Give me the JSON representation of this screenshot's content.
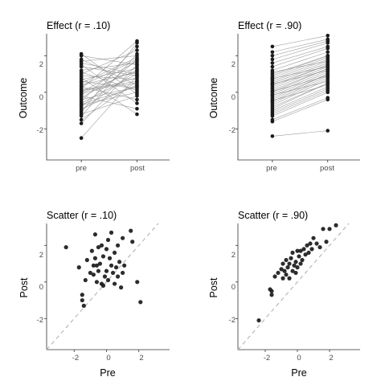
{
  "colors": {
    "points": "#1a1a1a",
    "lines": "#8c8c8c",
    "identity_line": "#b3b3b3",
    "axis": "#333333",
    "tick_text": "#4d4d4d",
    "background": "#ffffff"
  },
  "chart_data": [
    {
      "type": "line",
      "title": "Effect (r = .10)",
      "xlabel": "",
      "ylabel": "Outcome",
      "categories": [
        "pre",
        "post"
      ],
      "ylim": [
        -3.7,
        3.2
      ],
      "yticks": [
        -2,
        0,
        2
      ],
      "grid": false,
      "pairs": [
        [
          -2.5,
          0.9
        ],
        [
          -1.7,
          1.5
        ],
        [
          -1.5,
          0.6
        ],
        [
          -1.3,
          2.1
        ],
        [
          -1.2,
          -0.2
        ],
        [
          -1.0,
          1.2
        ],
        [
          -0.9,
          0.4
        ],
        [
          -0.8,
          1.8
        ],
        [
          -0.7,
          0.0
        ],
        [
          -0.6,
          1.0
        ],
        [
          -0.5,
          2.5
        ],
        [
          -0.4,
          0.3
        ],
        [
          -0.3,
          1.4
        ],
        [
          -0.2,
          -0.9
        ],
        [
          -0.1,
          0.8
        ],
        [
          0.0,
          1.7
        ],
        [
          0.1,
          0.5
        ],
        [
          0.2,
          2.8
        ],
        [
          0.3,
          -0.4
        ],
        [
          0.4,
          1.1
        ],
        [
          0.5,
          1.9
        ],
        [
          0.6,
          0.2
        ],
        [
          0.7,
          1.3
        ],
        [
          0.8,
          -1.2
        ],
        [
          0.9,
          0.7
        ],
        [
          1.0,
          2.3
        ],
        [
          1.1,
          0.1
        ],
        [
          1.2,
          1.6
        ],
        [
          1.4,
          0.9
        ],
        [
          1.5,
          -0.6
        ],
        [
          1.6,
          1.0
        ],
        [
          1.7,
          2.0
        ],
        [
          1.8,
          0.4
        ],
        [
          2.0,
          1.5
        ],
        [
          2.1,
          -0.1
        ],
        [
          -0.05,
          1.2
        ],
        [
          0.15,
          0.6
        ],
        [
          -1.1,
          2.7
        ],
        [
          0.35,
          1.8
        ],
        [
          -0.65,
          0.3
        ]
      ]
    },
    {
      "type": "line",
      "title": "Effect (r = .90)",
      "xlabel": "",
      "ylabel": "Outcome",
      "categories": [
        "pre",
        "post"
      ],
      "ylim": [
        -3.7,
        3.2
      ],
      "yticks": [
        -2,
        0,
        2
      ],
      "grid": false,
      "pairs": [
        [
          -2.4,
          -2.1
        ],
        [
          -1.6,
          -0.4
        ],
        [
          -1.5,
          -0.3
        ],
        [
          -1.3,
          0.0
        ],
        [
          -1.2,
          0.1
        ],
        [
          -1.0,
          0.3
        ],
        [
          -0.9,
          0.5
        ],
        [
          -0.8,
          0.5
        ],
        [
          -0.7,
          0.7
        ],
        [
          -0.6,
          0.8
        ],
        [
          -0.5,
          0.9
        ],
        [
          -0.4,
          1.0
        ],
        [
          -0.3,
          1.0
        ],
        [
          -0.2,
          1.1
        ],
        [
          -0.1,
          1.2
        ],
        [
          0.0,
          1.3
        ],
        [
          0.1,
          1.3
        ],
        [
          0.2,
          1.4
        ],
        [
          0.3,
          1.5
        ],
        [
          0.4,
          1.5
        ],
        [
          0.5,
          1.6
        ],
        [
          0.6,
          1.7
        ],
        [
          0.7,
          1.8
        ],
        [
          0.8,
          1.9
        ],
        [
          0.9,
          2.0
        ],
        [
          1.0,
          2.0
        ],
        [
          1.2,
          2.2
        ],
        [
          1.4,
          2.4
        ],
        [
          1.6,
          2.5
        ],
        [
          1.8,
          2.7
        ],
        [
          2.0,
          2.8
        ],
        [
          2.2,
          2.9
        ],
        [
          2.5,
          3.1
        ],
        [
          -0.15,
          0.6
        ],
        [
          0.05,
          0.9
        ],
        [
          0.45,
          1.2
        ],
        [
          -1.1,
          0.2
        ],
        [
          0.75,
          1.4
        ],
        [
          1.1,
          1.7
        ],
        [
          -0.45,
          0.4
        ]
      ]
    },
    {
      "type": "scatter",
      "title": "Scatter (r = .10)",
      "xlabel": "Pre",
      "ylabel": "Post",
      "xlim": [
        -3.7,
        3.9
      ],
      "ylim": [
        -3.7,
        3.2
      ],
      "xticks": [
        -2,
        0,
        2
      ],
      "yticks": [
        -2,
        0,
        2
      ],
      "identity_line": true,
      "grid": false,
      "points": [
        [
          -2.5,
          1.9
        ],
        [
          -1.7,
          0.8
        ],
        [
          -1.5,
          -0.7
        ],
        [
          -1.5,
          -1.0
        ],
        [
          -1.4,
          -1.3
        ],
        [
          -1.3,
          0.1
        ],
        [
          -1.2,
          1.2
        ],
        [
          -1.0,
          0.5
        ],
        [
          -0.9,
          1.7
        ],
        [
          -0.8,
          0.9
        ],
        [
          -0.8,
          0.4
        ],
        [
          -0.7,
          2.6
        ],
        [
          -0.7,
          1.3
        ],
        [
          -0.6,
          0.9
        ],
        [
          -0.6,
          0.0
        ],
        [
          -0.5,
          1.9
        ],
        [
          -0.5,
          0.6
        ],
        [
          -0.4,
          1.0
        ],
        [
          -0.3,
          2.0
        ],
        [
          -0.3,
          -0.1
        ],
        [
          -0.2,
          1.4
        ],
        [
          -0.2,
          -0.2
        ],
        [
          -0.1,
          0.3
        ],
        [
          0.0,
          1.8
        ],
        [
          0.0,
          0.6
        ],
        [
          0.1,
          2.3
        ],
        [
          0.1,
          0.1
        ],
        [
          0.2,
          1.3
        ],
        [
          0.3,
          2.7
        ],
        [
          0.3,
          0.9
        ],
        [
          0.4,
          0.5
        ],
        [
          0.5,
          1.6
        ],
        [
          0.5,
          -0.1
        ],
        [
          0.6,
          0.8
        ],
        [
          0.7,
          2.0
        ],
        [
          0.7,
          0.3
        ],
        [
          0.8,
          1.1
        ],
        [
          0.9,
          -0.3
        ],
        [
          1.0,
          0.5
        ],
        [
          1.0,
          2.4
        ],
        [
          1.1,
          0.9
        ],
        [
          1.5,
          2.8
        ],
        [
          1.6,
          2.2
        ],
        [
          1.9,
          0.0
        ],
        [
          2.1,
          -1.1
        ]
      ]
    },
    {
      "type": "scatter",
      "title": "Scatter (r = .90)",
      "xlabel": "Pre",
      "ylabel": "Post",
      "xlim": [
        -3.7,
        3.9
      ],
      "ylim": [
        -3.7,
        3.2
      ],
      "xticks": [
        -2,
        0,
        2
      ],
      "yticks": [
        -2,
        0,
        2
      ],
      "identity_line": true,
      "grid": false,
      "points": [
        [
          -2.4,
          -2.1
        ],
        [
          -1.7,
          -0.4
        ],
        [
          -1.6,
          -0.5
        ],
        [
          -1.6,
          -0.7
        ],
        [
          -1.4,
          0.3
        ],
        [
          -1.2,
          0.5
        ],
        [
          -1.0,
          0.7
        ],
        [
          -0.9,
          1.0
        ],
        [
          -0.9,
          0.2
        ],
        [
          -0.8,
          0.6
        ],
        [
          -0.7,
          1.2
        ],
        [
          -0.7,
          0.4
        ],
        [
          -0.6,
          0.8
        ],
        [
          -0.5,
          1.0
        ],
        [
          -0.5,
          0.2
        ],
        [
          -0.4,
          1.3
        ],
        [
          -0.3,
          0.6
        ],
        [
          -0.3,
          1.6
        ],
        [
          -0.2,
          0.9
        ],
        [
          -0.1,
          1.1
        ],
        [
          -0.1,
          0.5
        ],
        [
          0.0,
          1.7
        ],
        [
          0.0,
          0.8
        ],
        [
          0.1,
          1.4
        ],
        [
          0.2,
          1.0
        ],
        [
          0.2,
          1.7
        ],
        [
          0.3,
          1.2
        ],
        [
          0.4,
          1.8
        ],
        [
          0.5,
          1.5
        ],
        [
          0.6,
          2.0
        ],
        [
          0.7,
          1.6
        ],
        [
          0.8,
          2.1
        ],
        [
          0.9,
          1.8
        ],
        [
          1.0,
          2.4
        ],
        [
          1.2,
          2.1
        ],
        [
          1.4,
          1.9
        ],
        [
          1.6,
          2.9
        ],
        [
          1.8,
          2.2
        ],
        [
          2.0,
          2.9
        ],
        [
          2.4,
          3.1
        ]
      ]
    }
  ]
}
